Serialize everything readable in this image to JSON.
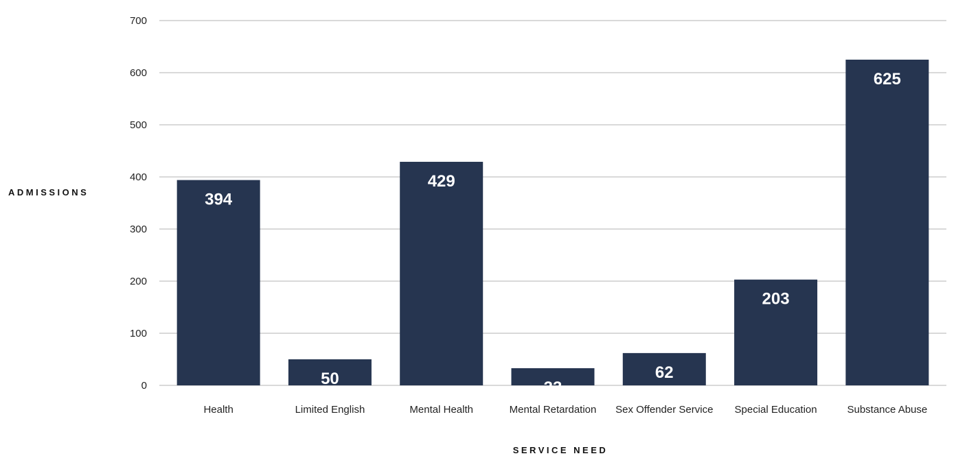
{
  "chart_data": {
    "type": "bar",
    "categories": [
      "Health",
      "Limited English",
      "Mental Health",
      "Mental Retardation",
      "Sex Offender Service",
      "Special Education",
      "Substance Abuse"
    ],
    "values": [
      394,
      50,
      429,
      33,
      62,
      203,
      625
    ],
    "ylabel": "ADMISSIONS",
    "xlabel": "SERVICE NEED",
    "ylim": [
      0,
      700
    ],
    "yticks": [
      0,
      100,
      200,
      300,
      400,
      500,
      600,
      700
    ],
    "grid": true,
    "colors": {
      "bar": "#263550",
      "grid": "#b3b3b3",
      "data_label": "#ffffff"
    }
  }
}
